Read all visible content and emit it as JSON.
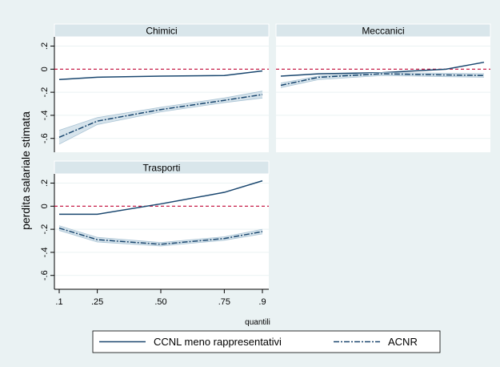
{
  "chart_data": {
    "type": "line",
    "ylabel": "perdita salariale stimata",
    "xlabel": "quantili",
    "x": [
      0.1,
      0.25,
      0.5,
      0.75,
      0.9
    ],
    "x_tick_labels": [
      ".1",
      ".25",
      ".50",
      ".75",
      ".9"
    ],
    "y_ticks": [
      0.2,
      0,
      -0.2,
      -0.4,
      -0.6
    ],
    "y_tick_labels": [
      ".2",
      "0",
      "-.2",
      "-.4",
      "-.6"
    ],
    "ylim": [
      -0.72,
      0.28
    ],
    "xlim": [
      0.1,
      0.9
    ],
    "reference_line": 0,
    "grid": true,
    "legend_position": "bottom",
    "legend": [
      "CCNL meno rappresentativi",
      "ACNR"
    ],
    "colors": {
      "outer_background": "#eaf2f3",
      "panel_title_fill": "#d9e6eb",
      "line": "#1a476f",
      "ci_band": "#c9dbe6",
      "reference_line": "#c10534",
      "grid": "#eaf2f3"
    },
    "panels": [
      {
        "title": "Chimici",
        "series": [
          {
            "name": "CCNL meno rappresentativi",
            "style": "solid",
            "values": [
              -0.09,
              -0.07,
              -0.06,
              -0.055,
              -0.015
            ]
          },
          {
            "name": "ACNR",
            "style": "dashdot",
            "values": [
              -0.59,
              -0.45,
              -0.35,
              -0.27,
              -0.22
            ],
            "ci_low": [
              -0.65,
              -0.48,
              -0.37,
              -0.29,
              -0.25
            ],
            "ci_high": [
              -0.53,
              -0.42,
              -0.33,
              -0.25,
              -0.19
            ]
          }
        ]
      },
      {
        "title": "Meccanici",
        "series": [
          {
            "name": "CCNL meno rappresentativi",
            "style": "solid",
            "values": [
              -0.06,
              -0.04,
              -0.03,
              0.0,
              0.06
            ]
          },
          {
            "name": "ACNR",
            "style": "dashdot",
            "values": [
              -0.14,
              -0.07,
              -0.04,
              -0.05,
              -0.055
            ],
            "ci_low": [
              -0.16,
              -0.09,
              -0.055,
              -0.065,
              -0.07
            ],
            "ci_high": [
              -0.12,
              -0.06,
              -0.03,
              -0.035,
              -0.04
            ]
          }
        ]
      },
      {
        "title": "Trasporti",
        "series": [
          {
            "name": "CCNL meno rappresentativi",
            "style": "solid",
            "values": [
              -0.07,
              -0.07,
              0.02,
              0.12,
              0.22
            ]
          },
          {
            "name": "ACNR",
            "style": "dashdot",
            "values": [
              -0.19,
              -0.29,
              -0.33,
              -0.28,
              -0.22
            ],
            "ci_low": [
              -0.21,
              -0.31,
              -0.345,
              -0.295,
              -0.24
            ],
            "ci_high": [
              -0.17,
              -0.27,
              -0.315,
              -0.265,
              -0.2
            ]
          }
        ]
      }
    ]
  }
}
